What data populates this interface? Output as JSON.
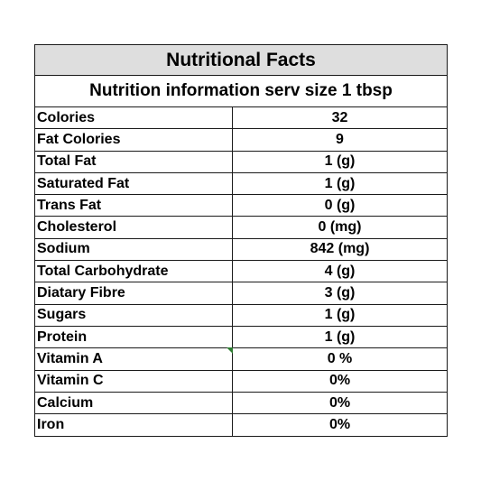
{
  "table": {
    "title": "Nutritional Facts",
    "subtitle": "Nutrition information serv size 1 tbsp",
    "rows": [
      {
        "label": "Colories",
        "value": "32"
      },
      {
        "label": "Fat Colories",
        "value": "9"
      },
      {
        "label": "Total Fat",
        "value": "1 (g)"
      },
      {
        "label": "Saturated Fat",
        "value": "1 (g)"
      },
      {
        "label": "Trans Fat",
        "value": "0 (g)"
      },
      {
        "label": "Cholesterol",
        "value": "0 (mg)"
      },
      {
        "label": "Sodium",
        "value": "842 (mg)"
      },
      {
        "label": "Total Carbohydrate",
        "value": "4 (g)"
      },
      {
        "label": "Diatary Fibre",
        "value": "3 (g)"
      },
      {
        "label": "Sugars",
        "value": "1 (g)"
      },
      {
        "label": "Protein",
        "value": "1 (g)"
      },
      {
        "label": "Vitamin A",
        "value": "0 %"
      },
      {
        "label": "Vitamin C",
        "value": "0%"
      },
      {
        "label": "Calcium",
        "value": "0%"
      },
      {
        "label": "Iron",
        "value": "0%"
      }
    ]
  }
}
